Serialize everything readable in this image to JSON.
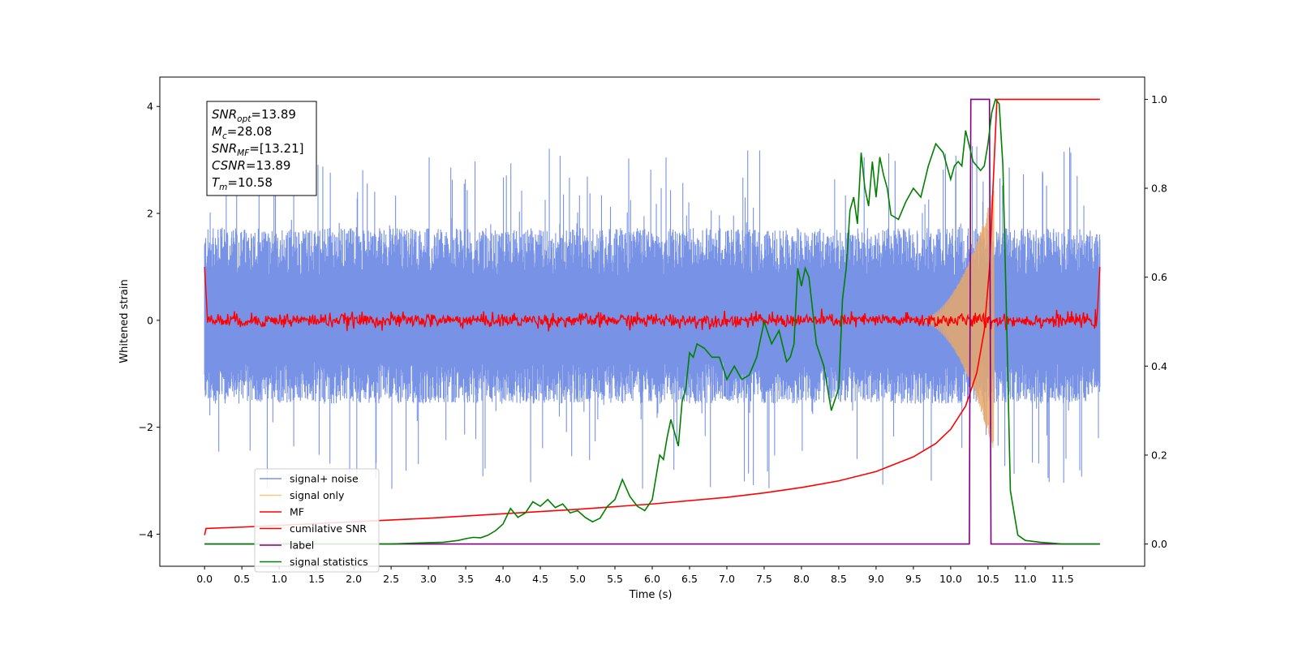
{
  "chart_data": {
    "type": "line",
    "xlabel": "Time (s)",
    "ylabel": "Whitened strain",
    "xlim": [
      -0.6,
      12.6
    ],
    "ylim": [
      -4.6,
      4.55
    ],
    "y2lim": [
      -0.05,
      1.05
    ],
    "xticks": [
      "0.0",
      "0.5",
      "1.0",
      "1.5",
      "2.0",
      "2.5",
      "3.0",
      "3.5",
      "4.0",
      "4.5",
      "5.0",
      "5.5",
      "6.0",
      "6.5",
      "7.0",
      "7.5",
      "8.0",
      "8.5",
      "9.0",
      "9.5",
      "10.0",
      "10.5",
      "11.0",
      "11.5"
    ],
    "yticks": [
      "−4",
      "−2",
      "0",
      "2",
      "4"
    ],
    "y2ticks": [
      "0.0",
      "0.2",
      "0.4",
      "0.6",
      "0.8",
      "1.0"
    ],
    "stats_box": [
      {
        "label": "SNR",
        "sub": "opt",
        "value": "=13.89"
      },
      {
        "label": "M",
        "sub": "c",
        "value": "=28.08"
      },
      {
        "label": "SNR",
        "sub": "MF",
        "value": "=[13.21]"
      },
      {
        "label": "CSNR",
        "sub": "",
        "value": "=13.89"
      },
      {
        "label": "T",
        "sub": "m",
        "value": "=10.58"
      }
    ],
    "legend": {
      "position": "lower-left",
      "entries": [
        {
          "name": "signal+ noise",
          "color": "#7893e6"
        },
        {
          "name": "signal only",
          "color": "#f5c97a"
        },
        {
          "name": "MF",
          "color": "#ff0000"
        },
        {
          "name": "cumilative SNR",
          "color": "#ff0000"
        },
        {
          "name": "label",
          "color": "#800080"
        },
        {
          "name": "signal statistics",
          "color": "#008000"
        }
      ]
    },
    "noise_band": {
      "t_start": 0.0,
      "t_end": 12.0,
      "typical_low": -1.3,
      "typical_high": 1.5,
      "extreme_low": -3.2,
      "extreme_high": 3.3
    },
    "signal_only": {
      "t_start": 9.5,
      "t_end": 10.58,
      "peak_amplitude": 2.5
    },
    "cumulative_snr": {
      "axis": "right",
      "x": [
        0.0,
        0.02,
        0.5,
        1.0,
        2.0,
        3.0,
        4.0,
        5.0,
        6.0,
        7.0,
        7.5,
        8.0,
        8.5,
        9.0,
        9.5,
        9.8,
        10.0,
        10.2,
        10.35,
        10.45,
        10.52,
        10.58,
        10.62,
        12.0
      ],
      "y": [
        0.02,
        0.035,
        0.038,
        0.042,
        0.05,
        0.058,
        0.068,
        0.078,
        0.09,
        0.105,
        0.115,
        0.127,
        0.142,
        0.163,
        0.196,
        0.226,
        0.258,
        0.31,
        0.385,
        0.48,
        0.62,
        0.85,
        1.0,
        1.0
      ]
    },
    "label": {
      "axis": "right",
      "x": [
        0.0,
        10.25,
        10.27,
        10.52,
        10.54,
        12.0
      ],
      "y": [
        0.0,
        0.0,
        1.0,
        1.0,
        0.0,
        0.0
      ]
    },
    "signal_statistics": {
      "axis": "right",
      "x": [
        0.0,
        0.5,
        1.0,
        1.5,
        2.0,
        2.5,
        2.8,
        3.0,
        3.2,
        3.4,
        3.5,
        3.6,
        3.7,
        3.8,
        3.9,
        4.0,
        4.1,
        4.2,
        4.3,
        4.4,
        4.5,
        4.6,
        4.7,
        4.8,
        4.9,
        5.0,
        5.1,
        5.2,
        5.3,
        5.4,
        5.5,
        5.6,
        5.7,
        5.8,
        5.9,
        6.0,
        6.05,
        6.1,
        6.15,
        6.2,
        6.25,
        6.3,
        6.35,
        6.4,
        6.45,
        6.5,
        6.55,
        6.6,
        6.7,
        6.8,
        6.9,
        7.0,
        7.1,
        7.2,
        7.3,
        7.4,
        7.5,
        7.6,
        7.7,
        7.8,
        7.85,
        7.9,
        7.95,
        8.0,
        8.05,
        8.1,
        8.2,
        8.3,
        8.4,
        8.5,
        8.55,
        8.6,
        8.65,
        8.7,
        8.75,
        8.8,
        8.85,
        8.9,
        8.95,
        9.0,
        9.05,
        9.1,
        9.15,
        9.2,
        9.3,
        9.4,
        9.5,
        9.6,
        9.7,
        9.8,
        9.9,
        10.0,
        10.05,
        10.1,
        10.15,
        10.2,
        10.3,
        10.4,
        10.45,
        10.5,
        10.55,
        10.6,
        10.65,
        10.7,
        10.75,
        10.8,
        10.9,
        11.0,
        11.2,
        11.5,
        12.0
      ],
      "y": [
        0.0,
        0.0,
        0.0,
        0.0,
        0.0,
        0.0,
        0.002,
        0.003,
        0.004,
        0.008,
        0.012,
        0.015,
        0.014,
        0.02,
        0.03,
        0.045,
        0.08,
        0.06,
        0.07,
        0.095,
        0.085,
        0.1,
        0.082,
        0.09,
        0.07,
        0.075,
        0.06,
        0.05,
        0.058,
        0.085,
        0.1,
        0.145,
        0.107,
        0.085,
        0.075,
        0.1,
        0.15,
        0.2,
        0.19,
        0.24,
        0.28,
        0.25,
        0.22,
        0.32,
        0.35,
        0.43,
        0.42,
        0.45,
        0.44,
        0.42,
        0.42,
        0.37,
        0.4,
        0.37,
        0.38,
        0.42,
        0.5,
        0.45,
        0.48,
        0.41,
        0.42,
        0.45,
        0.62,
        0.58,
        0.62,
        0.6,
        0.45,
        0.4,
        0.3,
        0.35,
        0.55,
        0.62,
        0.75,
        0.78,
        0.72,
        0.88,
        0.8,
        0.76,
        0.86,
        0.78,
        0.87,
        0.83,
        0.8,
        0.74,
        0.73,
        0.77,
        0.8,
        0.78,
        0.85,
        0.9,
        0.88,
        0.82,
        0.85,
        0.86,
        0.85,
        0.93,
        0.86,
        0.84,
        0.85,
        0.9,
        0.97,
        1.0,
        0.99,
        0.85,
        0.5,
        0.12,
        0.02,
        0.008,
        0.004,
        0.0,
        0.0
      ]
    },
    "mf": {
      "t_start": 0.0,
      "t_end": 12.0,
      "center": 0.0,
      "amplitude": 0.12,
      "edge_spike": 1.0
    }
  }
}
